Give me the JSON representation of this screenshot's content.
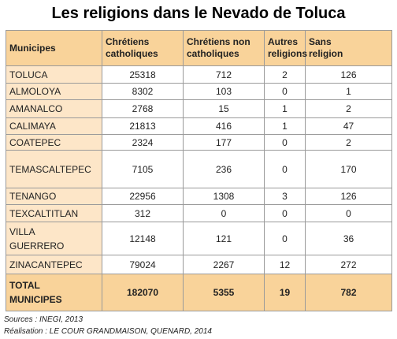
{
  "title": "Les religions dans le Nevado de Toluca",
  "table": {
    "header": [
      [
        "Municipes"
      ],
      [
        "Chrétiens",
        "catholiques"
      ],
      [
        "Chrétiens non",
        "catholiques"
      ],
      [
        "Autres",
        "religions"
      ],
      [
        "Sans",
        "religion"
      ]
    ],
    "rows": [
      [
        [
          "TOLUCA"
        ],
        25318,
        712,
        2,
        126
      ],
      [
        [
          "ALMOLOYA"
        ],
        8302,
        103,
        0,
        1
      ],
      [
        [
          "AMANALCO"
        ],
        2768,
        15,
        1,
        2
      ],
      [
        [
          "CALIMAYA"
        ],
        21813,
        416,
        1,
        47
      ],
      [
        [
          "COATEPEC"
        ],
        2324,
        177,
        0,
        2
      ],
      [
        [
          "TEMASCALTEPEC"
        ],
        7105,
        236,
        0,
        170
      ],
      [
        [
          "TENANGO"
        ],
        22956,
        1308,
        3,
        126
      ],
      [
        [
          "TEXCALTITLAN"
        ],
        312,
        0,
        0,
        0
      ],
      [
        [
          "VILLA",
          "GUERRERO"
        ],
        12148,
        121,
        0,
        36
      ],
      [
        [
          "ZINACANTEPEC"
        ],
        79024,
        2267,
        12,
        272
      ]
    ],
    "total": [
      [
        "TOTAL",
        "MUNICIPES"
      ],
      182070,
      5355,
      19,
      782
    ]
  },
  "footer": [
    "Sources : INEGI, 2013",
    "Réalisation : LE COUR GRANDMAISON, QUENARD, 2014"
  ]
}
